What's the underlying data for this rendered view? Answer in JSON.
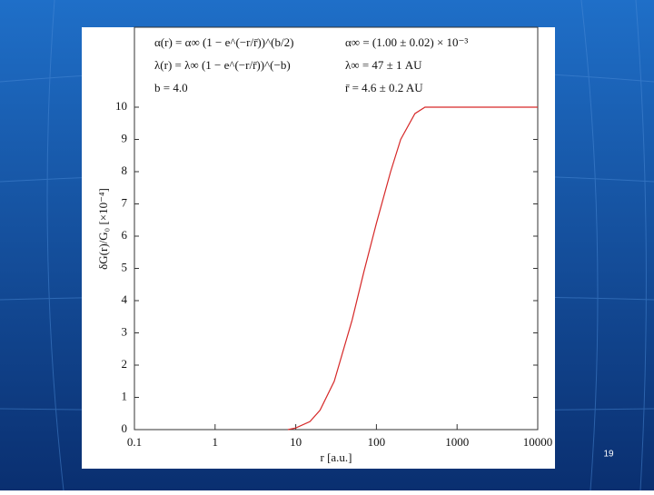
{
  "chart_data": {
    "type": "line",
    "xscale": "log",
    "x_label": "r [a.u.]",
    "y_label": "δG(r)/G₀ [×10⁻⁴]",
    "annotations": [
      "α(r) = α∞ (1 − e^(−r/r̄))^(b/2)",
      "λ(r) = λ∞ (1 − e^(−r/r̄))^(−b)",
      "b = 4.0",
      "α∞ = (1.00 ± 0.02) × 10⁻³",
      "λ∞ = 47 ± 1 AU",
      "r̄ = 4.6 ± 0.2 AU"
    ],
    "series": [
      {
        "color": "#d62828",
        "x": [
          8,
          10,
          15,
          20,
          30,
          50,
          70,
          100,
          150,
          200,
          300,
          400,
          1000,
          10000
        ],
        "values": [
          0,
          0.05,
          0.25,
          0.6,
          1.5,
          3.4,
          4.9,
          6.4,
          8.0,
          9.0,
          9.8,
          10,
          10,
          10
        ]
      }
    ],
    "xlim": [
      0.1,
      10000
    ],
    "xticks": [
      0.1,
      1,
      10,
      100,
      1000,
      10000
    ],
    "ylim": [
      0,
      10
    ],
    "yticks": [
      0,
      1,
      2,
      3,
      4,
      5,
      6,
      7,
      8,
      9,
      10
    ]
  },
  "slide_number": "19"
}
